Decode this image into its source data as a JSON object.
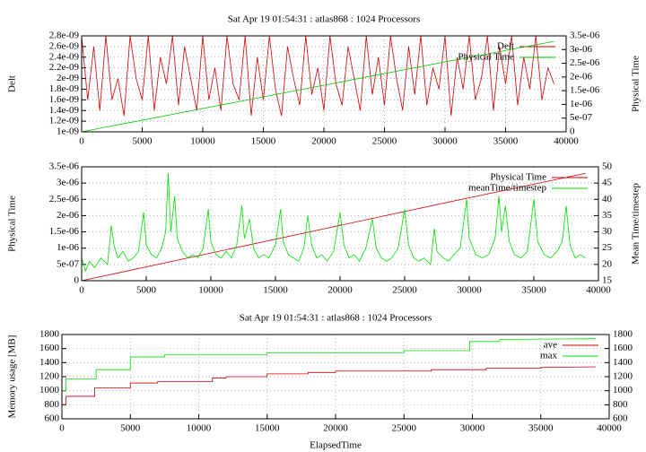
{
  "chart_data": [
    {
      "type": "line",
      "title": "Sat Apr 19 01:54:31 : atlas868 : 1024 Processors",
      "ylabel": "Delt",
      "y2label": "Physical Time",
      "grid": true,
      "legend": "top-right",
      "xlim": [
        0,
        40000
      ],
      "xticks": [
        0,
        5000,
        10000,
        15000,
        20000,
        25000,
        30000,
        35000,
        40000
      ],
      "ylim": [
        1e-09,
        2.8e-09
      ],
      "yticks": [
        {
          "value": 1e-09,
          "label": "1e-09"
        },
        {
          "value": 1.2e-09,
          "label": "1.2e-09"
        },
        {
          "value": 1.4e-09,
          "label": "1.4e-09"
        },
        {
          "value": 1.6e-09,
          "label": "1.6e-09"
        },
        {
          "value": 1.8e-09,
          "label": "1.8e-09"
        },
        {
          "value": 2e-09,
          "label": "2e-09"
        },
        {
          "value": 2.2e-09,
          "label": "2.2e-09"
        },
        {
          "value": 2.4e-09,
          "label": "2.4e-09"
        },
        {
          "value": 2.6e-09,
          "label": "2.6e-09"
        },
        {
          "value": 2.8e-09,
          "label": "2.8e-09"
        }
      ],
      "y2lim": [
        0,
        3.5e-06
      ],
      "y2ticks": [
        0,
        {
          "value": 5e-07,
          "label": "5e-07"
        },
        {
          "value": 1e-06,
          "label": "1e-06"
        },
        {
          "value": 1.5e-06,
          "label": "1.5e-06"
        },
        {
          "value": 2e-06,
          "label": "2e-06"
        },
        {
          "value": 2.5e-06,
          "label": "2.5e-06"
        },
        {
          "value": 3e-06,
          "label": "3e-06"
        },
        {
          "value": 3.5e-06,
          "label": "3.5e-06"
        }
      ],
      "series": [
        {
          "name": "Delt",
          "color": "#d00000",
          "axis": "y",
          "x": [
            0,
            500,
            1000,
            1500,
            2000,
            2500,
            3000,
            3500,
            4000,
            4500,
            5000,
            5500,
            6000,
            6500,
            7000,
            7500,
            8000,
            8500,
            9000,
            9500,
            10000,
            10500,
            11000,
            11500,
            12000,
            12500,
            13000,
            13500,
            14000,
            14500,
            15000,
            15500,
            16000,
            16500,
            17000,
            17500,
            18000,
            18500,
            19000,
            19500,
            20000,
            20500,
            21000,
            21500,
            22000,
            22500,
            23000,
            23500,
            24000,
            24500,
            25000,
            25500,
            26000,
            26500,
            27000,
            27500,
            28000,
            28500,
            29000,
            29500,
            30000,
            30500,
            31000,
            31500,
            32000,
            32500,
            33000,
            33500,
            34000,
            34500,
            35000,
            35500,
            36000,
            36500,
            37000,
            37500,
            38000,
            38500,
            39000
          ],
          "values": [
            2.8e-09,
            1.6e-09,
            2.6e-09,
            1.4e-09,
            2.8e-09,
            1.6e-09,
            2e-09,
            1.3e-09,
            2.8e-09,
            2e-09,
            1.6e-09,
            2.8e-09,
            1.4e-09,
            2.4e-09,
            1.9e-09,
            2.8e-09,
            1.5e-09,
            2.6e-09,
            2e-09,
            1.4e-09,
            2.8e-09,
            1.6e-09,
            2.2e-09,
            1.4e-09,
            2.8e-09,
            1.9e-09,
            1.6e-09,
            2.8e-09,
            1.3e-09,
            2.4e-09,
            1.6e-09,
            2.8e-09,
            1.8e-09,
            1.3e-09,
            2.6e-09,
            2e-09,
            1.5e-09,
            2.8e-09,
            1.7e-09,
            2.2e-09,
            1.4e-09,
            2.8e-09,
            1.9e-09,
            1.5e-09,
            2.6e-09,
            2e-09,
            1.4e-09,
            2.8e-09,
            1.7e-09,
            2.4e-09,
            1.5e-09,
            2.8e-09,
            2e-09,
            1.4e-09,
            2.6e-09,
            1.7e-09,
            2.8e-09,
            1.5e-09,
            2.2e-09,
            1.8e-09,
            2.8e-09,
            1.3e-09,
            2.4e-09,
            1.8e-09,
            2.8e-09,
            1.6e-09,
            2e-09,
            2.8e-09,
            1.4e-09,
            2.6e-09,
            1.9e-09,
            2.8e-09,
            1.5e-09,
            2.4e-09,
            1.8e-09,
            2.8e-09,
            1.6e-09,
            2.2e-09,
            1.9e-09
          ]
        },
        {
          "name": "Physical Time",
          "color": "#00c800",
          "axis": "y2",
          "x": [
            0,
            10000,
            20000,
            30000,
            39000
          ],
          "values": [
            0,
            8.5e-07,
            1.7e-06,
            2.55e-06,
            3.3e-06
          ]
        }
      ]
    },
    {
      "type": "line",
      "ylabel": "Physical Time",
      "y2label": "Mean Time/timestep",
      "grid": true,
      "legend": "top-right",
      "xlim": [
        0,
        40000
      ],
      "xticks": [
        0,
        5000,
        10000,
        15000,
        20000,
        25000,
        30000,
        35000,
        40000
      ],
      "ylim": [
        0,
        3.5e-06
      ],
      "yticks": [
        0,
        {
          "value": 5e-07,
          "label": "5e-07"
        },
        {
          "value": 1e-06,
          "label": "1e-06"
        },
        {
          "value": 1.5e-06,
          "label": "1.5e-06"
        },
        {
          "value": 2e-06,
          "label": "2e-06"
        },
        {
          "value": 2.5e-06,
          "label": "2.5e-06"
        },
        {
          "value": 3e-06,
          "label": "3e-06"
        },
        {
          "value": 3.5e-06,
          "label": "3.5e-06"
        }
      ],
      "y2lim": [
        15,
        50
      ],
      "y2ticks": [
        15,
        20,
        25,
        30,
        35,
        40,
        45,
        50
      ],
      "series": [
        {
          "name": "Physical Time",
          "color": "#d00000",
          "axis": "y",
          "x": [
            0,
            10000,
            20000,
            30000,
            39000
          ],
          "values": [
            0,
            8.5e-07,
            1.7e-06,
            2.55e-06,
            3.3e-06
          ]
        },
        {
          "name": "meanTime/timestep",
          "color": "#00e000",
          "axis": "y2",
          "x": [
            0,
            300,
            600,
            1000,
            1500,
            2000,
            2300,
            2500,
            2800,
            3200,
            3600,
            4000,
            4400,
            4800,
            5000,
            5400,
            5800,
            6200,
            6500,
            6700,
            6900,
            7200,
            7400,
            7800,
            8200,
            8600,
            9000,
            9400,
            9800,
            10000,
            10400,
            10800,
            11200,
            11600,
            12000,
            12400,
            12600,
            13000,
            13300,
            13700,
            14100,
            14500,
            15000,
            15400,
            15600,
            16000,
            16400,
            16800,
            17200,
            17500,
            17800,
            18200,
            18600,
            19000,
            19500,
            20000,
            20300,
            20700,
            21100,
            21500,
            22000,
            22500,
            22800,
            23200,
            23600,
            24000,
            24500,
            25000,
            25300,
            25700,
            26100,
            26500,
            27000,
            27300,
            27500,
            28000,
            28400,
            28800,
            29300,
            29800,
            30000,
            30500,
            31000,
            31500,
            32000,
            32300,
            32500,
            32800,
            33100,
            33500,
            34000,
            34500,
            35000,
            35300,
            35800,
            36300,
            36800,
            37200,
            37500,
            37800,
            38200,
            38600,
            39000
          ],
          "values": [
            22,
            18,
            21,
            19,
            22,
            20,
            32,
            26,
            22,
            24,
            21,
            22,
            24,
            36,
            26,
            23,
            22,
            25,
            30,
            48,
            30,
            41,
            28,
            24,
            22,
            23,
            22,
            25,
            37,
            27,
            23,
            22,
            24,
            22,
            26,
            38,
            28,
            34,
            25,
            22,
            23,
            22,
            26,
            37,
            27,
            23,
            22,
            21,
            25,
            35,
            26,
            22,
            23,
            21,
            24,
            36,
            26,
            22,
            23,
            21,
            25,
            34,
            25,
            22,
            21,
            22,
            25,
            37,
            26,
            22,
            21,
            22,
            20,
            31,
            24,
            22,
            21,
            23,
            25,
            40,
            28,
            23,
            22,
            23,
            28,
            41,
            30,
            38,
            27,
            23,
            22,
            24,
            40,
            27,
            23,
            22,
            24,
            27,
            38,
            26,
            22,
            23,
            22
          ]
        }
      ]
    },
    {
      "type": "line",
      "title": "Sat Apr 19 01:54:31 : atlas868 : 1024 Processors",
      "xlabel": "ElapsedTime",
      "ylabel": "Memory usage [MB]",
      "grid": true,
      "legend": "top-right",
      "xlim": [
        0,
        40000
      ],
      "xticks": [
        0,
        5000,
        10000,
        15000,
        20000,
        25000,
        30000,
        35000,
        40000
      ],
      "ylim": [
        600,
        1800
      ],
      "yticks": [
        600,
        800,
        1000,
        1200,
        1400,
        1600,
        1800
      ],
      "y2lim": [
        600,
        1800
      ],
      "y2ticks": [
        600,
        800,
        1000,
        1200,
        1400,
        1600,
        1800
      ],
      "series": [
        {
          "name": "ave",
          "color": "#d00000",
          "axis": "y",
          "x": [
            0,
            300,
            300,
            2400,
            2400,
            5000,
            5000,
            7000,
            7000,
            11000,
            11000,
            12000,
            12000,
            15000,
            15000,
            18000,
            18000,
            20000,
            20000,
            27000,
            27000,
            31000,
            31000,
            35000,
            35000,
            39000
          ],
          "values": [
            800,
            800,
            920,
            920,
            1040,
            1040,
            1110,
            1110,
            1130,
            1130,
            1180,
            1180,
            1200,
            1200,
            1240,
            1240,
            1260,
            1260,
            1280,
            1280,
            1300,
            1300,
            1320,
            1320,
            1330,
            1340
          ]
        },
        {
          "name": "max",
          "color": "#00e000",
          "axis": "y",
          "x": [
            0,
            300,
            300,
            2500,
            2500,
            5000,
            5000,
            7500,
            7500,
            15000,
            15000,
            25000,
            25000,
            29800,
            29800,
            32000,
            32000,
            39000
          ],
          "values": [
            1000,
            1000,
            1170,
            1170,
            1300,
            1300,
            1480,
            1480,
            1510,
            1510,
            1540,
            1540,
            1570,
            1570,
            1700,
            1700,
            1730,
            1740
          ]
        }
      ]
    }
  ]
}
